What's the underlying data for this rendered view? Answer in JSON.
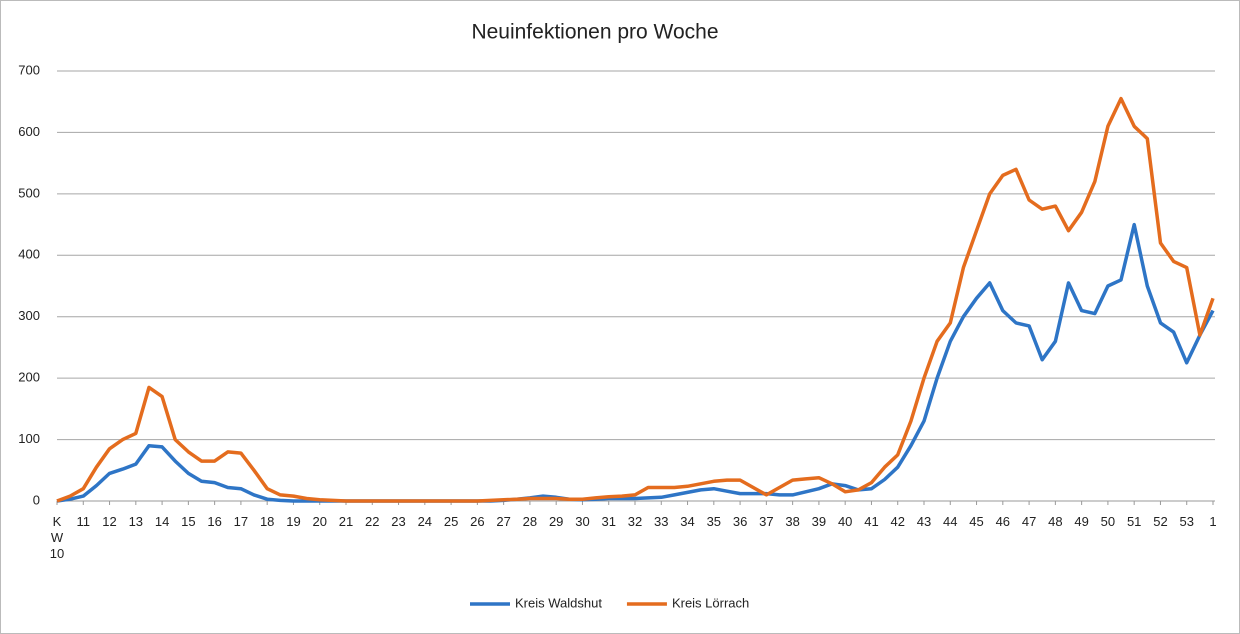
{
  "chart_data": {
    "type": "line",
    "title": "Neuinfektionen pro Woche",
    "x": [
      10,
      10.5,
      11,
      11.5,
      12,
      12.5,
      13,
      13.5,
      14,
      14.5,
      15,
      15.5,
      16,
      16.5,
      17,
      17.5,
      18,
      18.5,
      19,
      19.5,
      20,
      20.5,
      21,
      21.5,
      22,
      22.5,
      23,
      23.5,
      24,
      24.5,
      25,
      25.5,
      26,
      26.5,
      27,
      27.5,
      28,
      28.5,
      29,
      29.5,
      30,
      30.5,
      31,
      31.5,
      32,
      32.5,
      33,
      33.5,
      34,
      34.5,
      35,
      35.5,
      36,
      36.5,
      37,
      37.5,
      38,
      38.5,
      39,
      39.5,
      40,
      40.5,
      41,
      41.5,
      42,
      42.5,
      43,
      43.5,
      44,
      44.5,
      45,
      45.5,
      46,
      46.5,
      47,
      47.5,
      48,
      48.5,
      49,
      49.5,
      50,
      50.5,
      51,
      51.5,
      52,
      52.5,
      53,
      53.5,
      54
    ],
    "series": [
      {
        "name": "Kreis Waldshut",
        "color": "#2e75c6",
        "values": [
          0,
          3,
          8,
          25,
          45,
          52,
          60,
          90,
          88,
          65,
          45,
          32,
          30,
          22,
          20,
          10,
          3,
          1,
          0,
          0,
          0,
          0,
          0,
          0,
          0,
          0,
          0,
          0,
          0,
          0,
          0,
          0,
          0,
          0,
          1,
          3,
          5,
          8,
          6,
          3,
          2,
          3,
          4,
          4,
          4,
          5,
          6,
          10,
          14,
          18,
          20,
          16,
          12,
          12,
          12,
          10,
          10,
          15,
          20,
          28,
          25,
          18,
          20,
          35,
          55,
          90,
          130,
          200,
          260,
          300,
          330,
          355,
          310,
          290,
          285,
          230,
          260,
          355,
          310,
          305,
          350,
          360,
          450,
          350,
          290,
          275,
          225,
          270,
          310
        ]
      },
      {
        "name": "Kreis Lörrach",
        "color": "#e46c1e",
        "values": [
          0,
          8,
          20,
          55,
          85,
          100,
          110,
          185,
          170,
          100,
          80,
          65,
          65,
          80,
          78,
          50,
          20,
          10,
          8,
          4,
          2,
          1,
          0,
          0,
          0,
          0,
          0,
          0,
          0,
          0,
          0,
          0,
          0,
          1,
          2,
          3,
          4,
          4,
          4,
          3,
          3,
          5,
          7,
          8,
          10,
          22,
          22,
          22,
          24,
          28,
          32,
          34,
          34,
          22,
          10,
          22,
          34,
          36,
          38,
          28,
          15,
          18,
          30,
          55,
          75,
          130,
          200,
          260,
          290,
          380,
          440,
          500,
          530,
          540,
          490,
          475,
          480,
          440,
          470,
          520,
          610,
          655,
          610,
          590,
          420,
          390,
          380,
          270,
          330
        ]
      }
    ],
    "xlim": [
      10,
      54
    ],
    "xticks": [
      {
        "value": 10,
        "label": "KW 10"
      },
      11,
      12,
      13,
      14,
      15,
      16,
      17,
      18,
      19,
      20,
      21,
      22,
      23,
      24,
      25,
      26,
      27,
      28,
      29,
      30,
      31,
      32,
      33,
      34,
      35,
      36,
      37,
      38,
      39,
      40,
      41,
      42,
      43,
      44,
      45,
      46,
      47,
      48,
      49,
      50,
      51,
      52,
      53,
      {
        "value": 54,
        "label": "1"
      }
    ],
    "ylim": [
      0,
      700
    ],
    "yticks": [
      0,
      100,
      200,
      300,
      400,
      500,
      600,
      700
    ],
    "grid": true,
    "legend": "bottom"
  }
}
